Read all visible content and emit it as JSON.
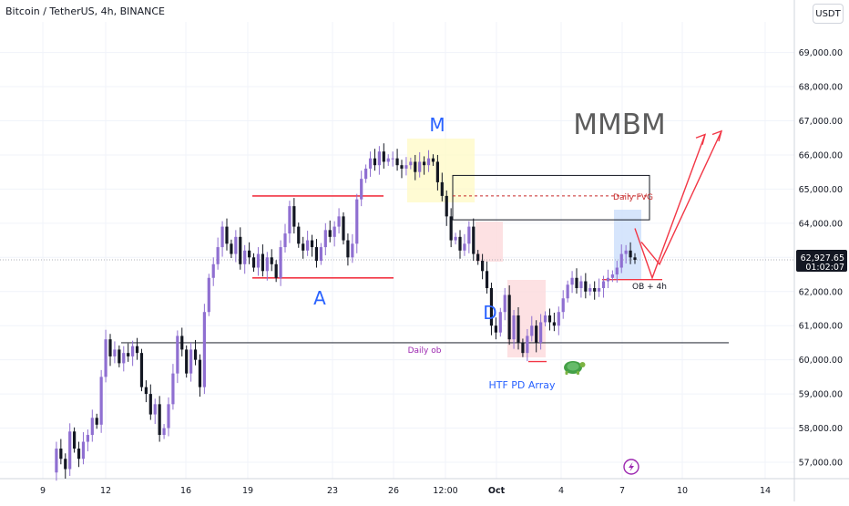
{
  "header": {
    "symbol": "Bitcoin / TetherUS, 4h, BINANCE",
    "currency": "USDT"
  },
  "chart_data": {
    "type": "candlestick",
    "ylim": [
      56600,
      70000
    ],
    "y_ticks": [
      57000,
      58000,
      59000,
      60000,
      61000,
      62000,
      63000,
      64000,
      65000,
      66000,
      67000,
      68000,
      69000
    ],
    "y_tick_labels": [
      "57,000.00",
      "58,000.00",
      "59,000.00",
      "60,000.00",
      "61,000.00",
      "62,000.00",
      "63,000.00",
      "64,000.00",
      "65,000.00",
      "66,000.00",
      "67,000.00",
      "68,000.00",
      "69,000.00"
    ],
    "x_tick_labels": [
      "9",
      "12",
      "16",
      "19",
      "23",
      "26",
      "12:00",
      "Oct",
      "4",
      "7",
      "10",
      "14"
    ],
    "last_price": "62,927.65",
    "countdown": "01:02:07",
    "annotations": {
      "M": "M",
      "A": "A",
      "D": "D",
      "MMBM": "MMBM",
      "daily_fvg": "Daily FVG",
      "daily_ob": "Daily ob",
      "ob_4h": "OB + 4h",
      "htf_pd_array": "HTF PD Array"
    },
    "levels": {
      "range_high": 64800,
      "range_low": 62400,
      "daily_ob": 60500,
      "fvg_top": 65400,
      "fvg_bottom": 64100,
      "fvg_mid": 64800,
      "ob_4h": 62350,
      "last_price": 62927.65
    },
    "path_close": [
      56700,
      57400,
      57100,
      56800,
      57900,
      57400,
      57100,
      57600,
      57800,
      58300,
      58100,
      59500,
      60600,
      60100,
      60300,
      59900,
      60200,
      60100,
      60400,
      60200,
      59200,
      59000,
      58400,
      58700,
      57800,
      58000,
      58700,
      59600,
      60700,
      60300,
      59600,
      60300,
      60000,
      59200,
      61400,
      62400,
      62800,
      63300,
      63900,
      63400,
      63100,
      63600,
      62800,
      63200,
      63000,
      62700,
      63100,
      62600,
      63000,
      62800,
      62400,
      63300,
      63700,
      64500,
      63900,
      63400,
      63200,
      63500,
      63300,
      62900,
      63300,
      63800,
      63600,
      63900,
      64200,
      63500,
      63000,
      63400,
      64700,
      65300,
      65600,
      65900,
      65700,
      66100,
      65800,
      65900,
      65900,
      65700,
      65600,
      65700,
      65800,
      65500,
      65800,
      65700,
      65900,
      65800,
      65200,
      64800,
      64200,
      63500,
      63600,
      63200,
      63400,
      63900,
      63100,
      62900,
      62600,
      62100,
      61000,
      60800,
      61400,
      61900,
      60600,
      61300,
      60500,
      60200,
      60700,
      61000,
      60500,
      61100,
      61300,
      61100,
      61000,
      61400,
      61800,
      62200,
      62400,
      62100,
      62300,
      62000,
      62100,
      62000,
      62100,
      62300,
      62400,
      62500,
      62700,
      63100,
      63200,
      63000,
      62927
    ],
    "forecast_path": [
      [
        63300,
        63850
      ],
      [
        63800,
        63450
      ],
      [
        64500,
        62400
      ],
      [
        65800,
        64000
      ],
      [
        67200,
        66600
      ]
    ]
  }
}
